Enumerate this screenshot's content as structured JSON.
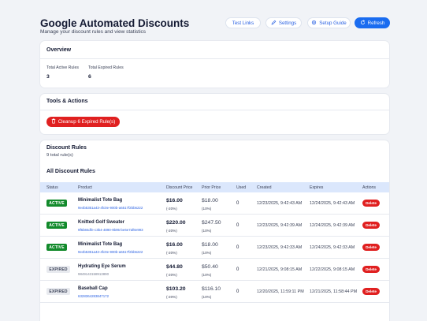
{
  "header": {
    "title": "Google Automated Discounts",
    "subtitle": "Manage your discount rules and view statistics",
    "buttons": {
      "test_links": "Test Links",
      "settings": "Settings",
      "setup_guide": "Setup Guide",
      "refresh": "Refresh"
    }
  },
  "overview": {
    "title": "Overview",
    "total_active_label": "Total Active Rules",
    "total_active_value": "3",
    "total_expired_label": "Total Expired Rules",
    "total_expired_value": "6"
  },
  "tools": {
    "title": "Tools & Actions",
    "cleanup_label": "Cleanup 6 Expired Rule(s)"
  },
  "rules": {
    "title": "Discount Rules",
    "count": "9 total rule(s)",
    "all_title": "All Discount Rules",
    "columns": [
      "Status",
      "Product",
      "Discount Price",
      "Prior Price",
      "Used",
      "Created",
      "Expires",
      "Actions"
    ],
    "delete_label": "Delete",
    "rows": [
      {
        "status": "ACTIVE",
        "product": "Minimalist Tote Bag",
        "id": "9e4b5351a43-4fc0e-900b-a6517f2bb6222",
        "discount_price": "$16.00",
        "discount_pct": "(-20%)",
        "prior_price": "$18.00",
        "prior_pct": "(10%)",
        "used": "0",
        "created": "12/23/2025, 9:42:43 AM",
        "expires": "12/24/2025, 9:42:43 AM"
      },
      {
        "status": "ACTIVE",
        "product": "Knitted Golf Sweater",
        "id": "9f6b84dfe-c3b4-4890-9b95-be6e7af8e993",
        "discount_price": "$220.00",
        "discount_pct": "(-20%)",
        "prior_price": "$247.50",
        "prior_pct": "(10%)",
        "used": "0",
        "created": "12/23/2025, 9:42:39 AM",
        "expires": "12/24/2025, 9:42:39 AM"
      },
      {
        "status": "ACTIVE",
        "product": "Minimalist Tote Bag",
        "id": "9e4b5351a43-4fc0e-900b-a6517f2bb6222",
        "discount_price": "$16.00",
        "discount_pct": "(-20%)",
        "prior_price": "$18.00",
        "prior_pct": "(10%)",
        "used": "0",
        "created": "12/23/2025, 9:42:33 AM",
        "expires": "12/24/2025, 9:42:33 AM"
      },
      {
        "status": "EXPIRED",
        "product": "Hydrating Eye Serum",
        "id": "9849143158913890",
        "discount_price": "$44.80",
        "discount_pct": "(-20%)",
        "prior_price": "$50.40",
        "prior_pct": "(10%)",
        "used": "0",
        "created": "12/21/2025, 9:08:15 AM",
        "expires": "12/22/2025, 9:08:15 AM"
      },
      {
        "status": "EXPIRED",
        "product": "Baseball Cap",
        "id": "6328364283847172",
        "discount_price": "$103.20",
        "discount_pct": "(-20%)",
        "prior_price": "$116.10",
        "prior_pct": "(10%)",
        "used": "0",
        "created": "12/20/2025, 11:59:11 PM",
        "expires": "12/21/2025, 11:58:44 PM"
      }
    ]
  }
}
